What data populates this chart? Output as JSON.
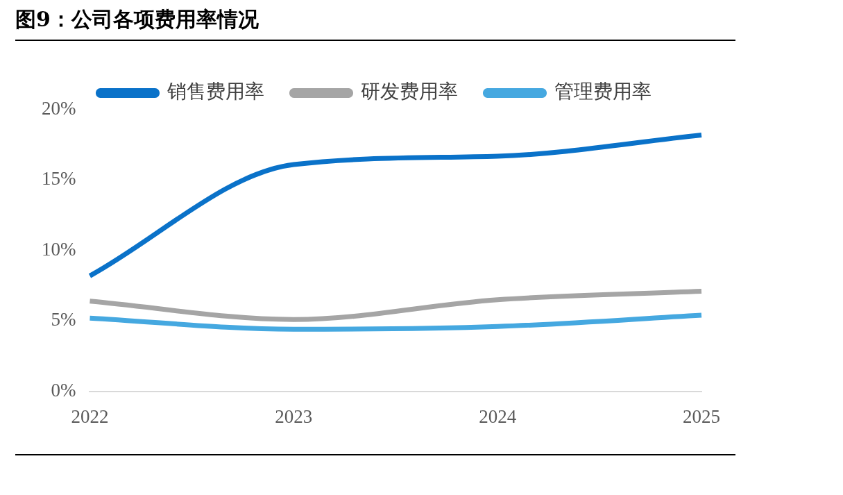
{
  "chart_data": {
    "type": "line",
    "title": "图9：公司各项费用率情况",
    "categories": [
      "2022",
      "2023",
      "2024",
      "2025"
    ],
    "series": [
      {
        "name": "销售费用率",
        "color": "#0a72c9",
        "values": [
          8.2,
          16.1,
          16.7,
          18.2
        ]
      },
      {
        "name": "研发费用率",
        "color": "#a5a5a5",
        "values": [
          6.4,
          5.1,
          6.5,
          7.1
        ]
      },
      {
        "name": "管理费用率",
        "color": "#45a8e0",
        "values": [
          5.2,
          4.4,
          4.6,
          5.4
        ]
      }
    ],
    "ylim": [
      0,
      20
    ],
    "yticks": [
      {
        "value": 0,
        "label": "0%"
      },
      {
        "value": 5,
        "label": "5%"
      },
      {
        "value": 10,
        "label": "10%"
      },
      {
        "value": 15,
        "label": "15%"
      },
      {
        "value": 20,
        "label": "20%"
      }
    ],
    "grid": false,
    "legend": "top",
    "marker": "none",
    "line_style": "solid"
  }
}
